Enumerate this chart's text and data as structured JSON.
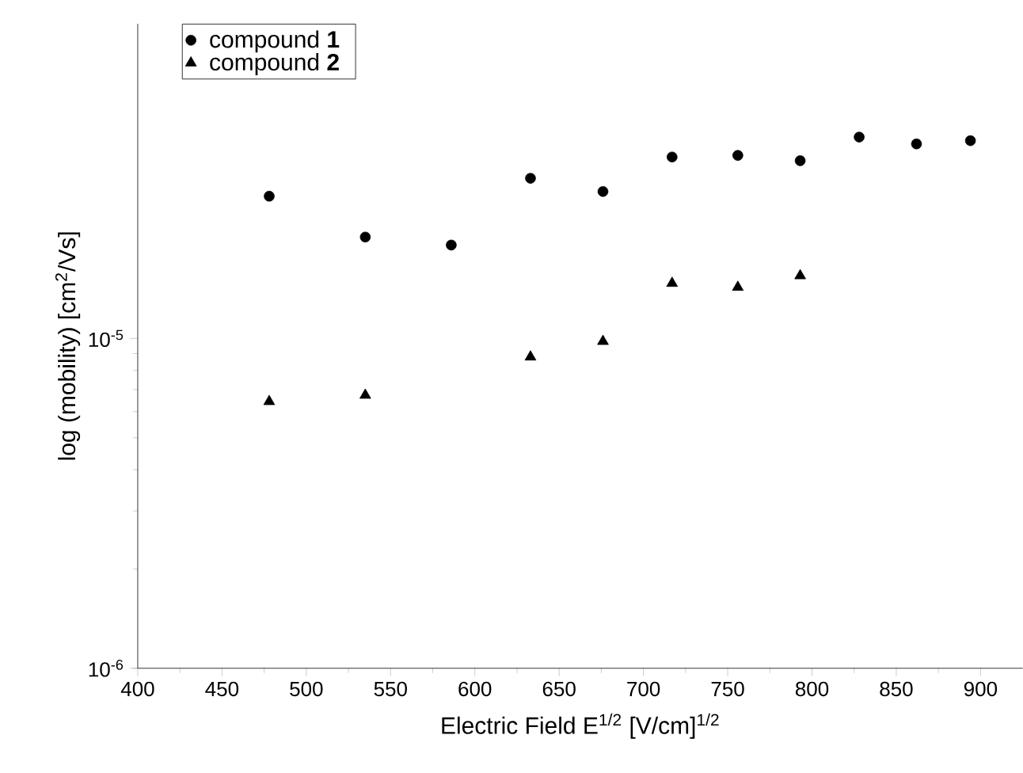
{
  "chart_data": {
    "type": "scatter",
    "xlabel": "Electric Field E$^{1/2}$ [V/cm]$^{1/2}$",
    "ylabel": "log (mobility) [cm$^{2}$/Vs]",
    "series": [
      {
        "name": "compound **1**",
        "color": "#000000",
        "marker": "circle",
        "x": [
          478,
          535,
          586,
          633,
          676,
          717,
          756,
          793,
          828,
          862,
          894
        ],
        "values": [
          2.7e-05,
          2.03e-05,
          1.92e-05,
          3.06e-05,
          2.79e-05,
          3.55e-05,
          3.59e-05,
          3.46e-05,
          4.08e-05,
          3.89e-05,
          3.98e-05
        ]
      },
      {
        "name": "compound **2**",
        "color": "#000000",
        "marker": "triangle",
        "x": [
          478,
          535,
          633,
          676,
          717,
          756,
          793
        ],
        "values": [
          6.44e-06,
          6.73e-06,
          8.79e-06,
          9.8e-06,
          1.47e-05,
          1.43e-05,
          1.55e-05
        ]
      }
    ],
    "xlim": [
      400,
      925
    ],
    "xticks": [
      400,
      450,
      500,
      550,
      600,
      650,
      700,
      750,
      800,
      850,
      900
    ],
    "ylim": [
      1e-06,
      9e-05
    ],
    "yticks": [
      {
        "value": 1e-06,
        "label": "10$^{-6}$"
      },
      {
        "value": 1e-05,
        "label": "10$^{-5}$"
      }
    ],
    "log": "y",
    "grid": false,
    "legend": "top left"
  }
}
